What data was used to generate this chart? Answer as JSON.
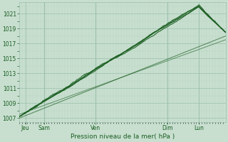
{
  "title": "",
  "xlabel": "Pression niveau de la mer( hPa )",
  "ylabel": "",
  "ylim": [
    1006.5,
    1022.5
  ],
  "yticks": [
    1007,
    1009,
    1011,
    1013,
    1015,
    1017,
    1019,
    1021
  ],
  "xlim": [
    0,
    100
  ],
  "xtick_positions": [
    3,
    12,
    37,
    72,
    87
  ],
  "xtick_labels": [
    "Jeu",
    "Sam",
    "Ven",
    "Dim",
    "Lun"
  ],
  "bg_color": "#c8dfd0",
  "plot_bg_color": "#c8dfd0",
  "grid_major_color": "#9cbfac",
  "grid_minor_color": "#b8d4c0",
  "line_color": "#1a5e20",
  "n_points": 500
}
